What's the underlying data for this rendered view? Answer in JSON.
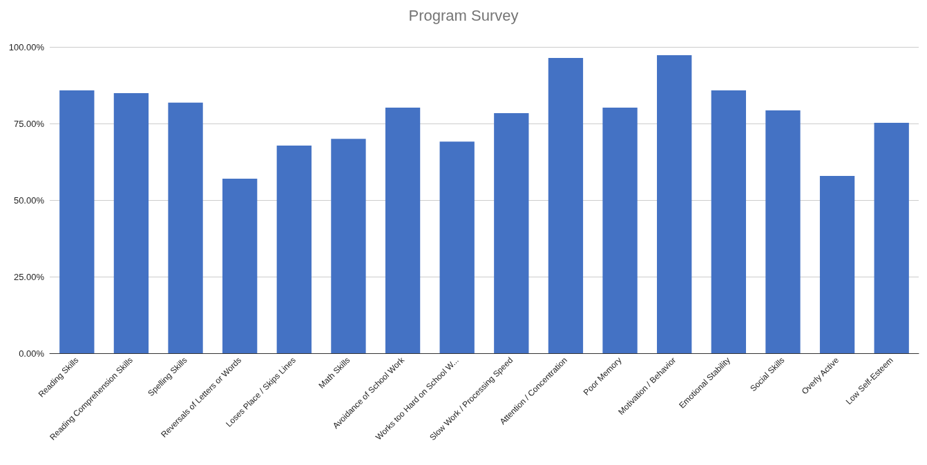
{
  "chart_data": {
    "type": "bar",
    "title": "Program Survey",
    "categories": [
      "Reading Skills",
      "Reading Comprehension Skills",
      "Spelling Skills",
      "Reversals of Letters or Words",
      "Loses Place / Skips Lines",
      "Math Skills",
      "Avoidance of School Work",
      "Works too Hard on School W...",
      "Slow Work / Processing Speed",
      "Attention / Concentration",
      "Poor Memory",
      "Motivation / Behavior",
      "Emotional Stability",
      "Social Skills",
      "Overly Active",
      "Low Self-Esteem"
    ],
    "values": [
      85.8,
      84.9,
      81.8,
      57.0,
      67.8,
      70.0,
      80.2,
      69.1,
      78.4,
      96.4,
      80.2,
      97.3,
      85.8,
      79.3,
      57.9,
      75.2
    ],
    "color": "#4472c4",
    "ylim": [
      0,
      100
    ],
    "yticks": [
      {
        "value": 0,
        "label": "0.00%"
      },
      {
        "value": 25,
        "label": "25.00%"
      },
      {
        "value": 50,
        "label": "50.00%"
      },
      {
        "value": 75,
        "label": "75.00%"
      },
      {
        "value": 100,
        "label": "100.00%"
      }
    ],
    "grid": "y"
  }
}
